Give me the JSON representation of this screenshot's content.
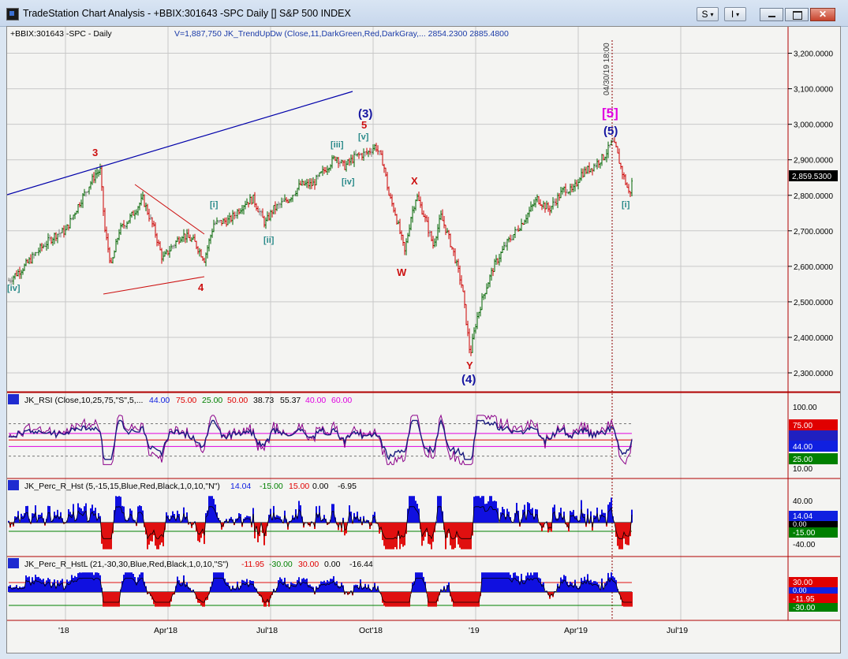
{
  "window": {
    "title": "TradeStation Chart Analysis - +BBIX:301643 -SPC Daily [] S&P 500 INDEX",
    "btn_s": "S",
    "btn_i": "I"
  },
  "colors": {
    "up_bar": "#006400",
    "down_bar": "#cc0000",
    "neutral_bar": "#808080",
    "pane_border": "#b00000",
    "grid": "#c8c8c8",
    "osc_blue": "#0000ff",
    "osc_red": "#ff0000",
    "trendline": "#0000aa",
    "wave_blue": "#1414a0",
    "wave_red": "#cc1010",
    "wave_teal": "#2a8a8a",
    "wave_magenta": "#e000e0"
  },
  "price_pane": {
    "header_symbol": "+BBIX:301643 -SPC - Daily",
    "header_indicator": "V=1,887,750  JK_TrendUpDw (Close,11,DarkGreen,Red,DarkGray,...  2854.2300  2885.4800",
    "y_ticks": [
      "3,200.0000",
      "3,100.0000",
      "3,000.0000",
      "2,900.0000",
      "2,800.0000",
      "2,700.0000",
      "2,600.0000",
      "2,500.0000",
      "2,400.0000",
      "2,300.0000"
    ],
    "y_min": 2240,
    "y_max": 3290,
    "last_price_label": "2,859.5300",
    "last_price": 2859.53,
    "vertical_marker_label": "04/30/19 18:00",
    "wave_labels": [
      {
        "text": "[iv]",
        "color": "teal"
      },
      {
        "text": "3",
        "color": "red"
      },
      {
        "text": "4",
        "color": "red"
      },
      {
        "text": "[i]",
        "color": "teal"
      },
      {
        "text": "[ii]",
        "color": "teal"
      },
      {
        "text": "[iii]",
        "color": "teal"
      },
      {
        "text": "[iv]",
        "color": "teal"
      },
      {
        "text": "[v]",
        "color": "teal"
      },
      {
        "text": "5",
        "color": "red"
      },
      {
        "text": "(3)",
        "color": "blue"
      },
      {
        "text": "X",
        "color": "red"
      },
      {
        "text": "W",
        "color": "red"
      },
      {
        "text": "Y",
        "color": "red"
      },
      {
        "text": "(4)",
        "color": "blue"
      },
      {
        "text": "[5]",
        "color": "magenta"
      },
      {
        "text": "(5)",
        "color": "blue"
      },
      {
        "text": "[i]",
        "color": "teal"
      }
    ]
  },
  "rsi_pane": {
    "header_name": "JK_RSI (Close,10,25,75,\"S\",5,...",
    "header_values": [
      "44.00",
      "75.00",
      "25.00",
      "50.00",
      "38.73",
      "55.37",
      "40.00",
      "60.00"
    ],
    "y_ticks": [
      "100.00",
      "10.00"
    ],
    "badges": [
      "75.00",
      "44.00",
      "25.00"
    ]
  },
  "perc_pane": {
    "header_name": "JK_Perc_R_Hst (5,-15,15,Blue,Red,Black,1,0,10,\"N\")",
    "header_values": [
      "14.04",
      "-15.00",
      "15.00",
      "0.00",
      "-6.95"
    ],
    "y_ticks": [
      "40.00",
      "-40.00"
    ],
    "badges": [
      "14.04",
      "0.00",
      "-15.00"
    ]
  },
  "percl_pane": {
    "header_name": "JK_Perc_R_HstL (21,-30,30,Blue,Red,Black,1,0,10,\"S\")",
    "header_values": [
      "-11.95",
      "-30.00",
      "30.00",
      "0.00",
      "-16.44"
    ],
    "badges": [
      "30.00",
      "0.00",
      "-11.95",
      "-30.00"
    ]
  },
  "x_axis": {
    "labels": [
      "'18",
      "Apr'18",
      "Jul'18",
      "Oct'18",
      "'19",
      "Apr'19",
      "Jul'19"
    ]
  }
}
